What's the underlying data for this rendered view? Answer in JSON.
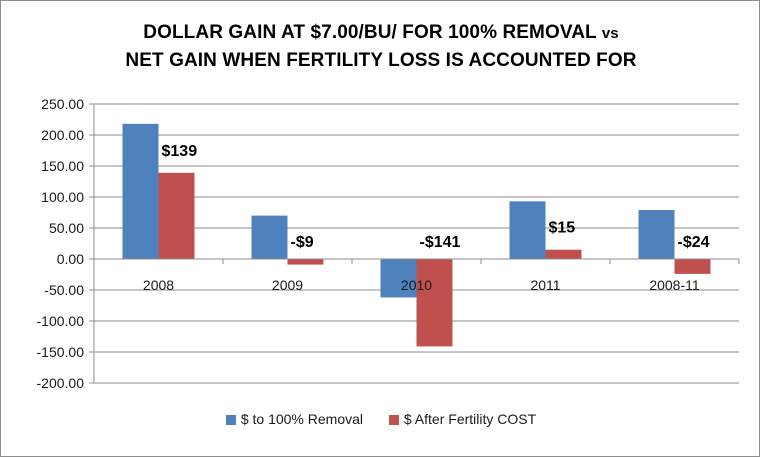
{
  "chart_data": {
    "type": "bar",
    "title_line1": "DOLLAR GAIN AT $7.00/BU/ FOR 100% REMOVAL",
    "title_vs": "vs",
    "title_line2": "NET GAIN WHEN FERTILITY LOSS IS ACCOUNTED FOR",
    "categories": [
      "2008",
      "2009",
      "2010",
      "2011",
      "2008-11"
    ],
    "series": [
      {
        "name": "$ to 100% Removal",
        "color": "#4f81bd",
        "values": [
          218,
          70,
          -62,
          93,
          79
        ]
      },
      {
        "name": "$ After Fertility COST",
        "color": "#c0504d",
        "values": [
          139,
          -9,
          -141,
          15,
          -24
        ],
        "data_labels": [
          "$139",
          "-$9",
          "-$141",
          "$15",
          "-$24"
        ]
      }
    ],
    "ylim": [
      -200,
      250
    ],
    "yticks": [
      "250.00",
      "200.00",
      "150.00",
      "100.00",
      "50.00",
      "0.00",
      "-50.00",
      "-100.00",
      "-150.00",
      "-200.00"
    ],
    "xlabel": "",
    "ylabel": "",
    "grid": true,
    "legend_position": "bottom"
  }
}
